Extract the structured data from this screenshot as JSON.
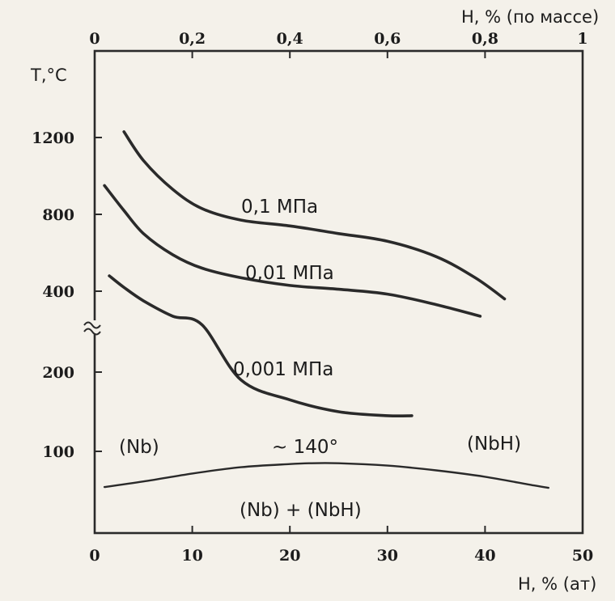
{
  "chart_data": {
    "type": "line",
    "x_top": {
      "label": "H, % (по массе)",
      "ticks": [
        "0",
        "0,2",
        "0,4",
        "0,6",
        "0,8",
        "1"
      ],
      "range": [
        0,
        1
      ]
    },
    "x_bottom": {
      "label": "H, % (ат)",
      "ticks": [
        "0",
        "10",
        "20",
        "30",
        "40",
        "50"
      ],
      "range": [
        0,
        50
      ]
    },
    "y": {
      "label": "T,°C",
      "upper_ticks": [
        "400",
        "800",
        "1200"
      ],
      "lower_ticks": [
        "100",
        "200"
      ],
      "axis_break": true
    },
    "series": [
      {
        "name": "0,1 МПа",
        "x": [
          3,
          5,
          8,
          11,
          15,
          20,
          25,
          30,
          35,
          39,
          42
        ],
        "y": [
          1230,
          1080,
          930,
          830,
          770,
          740,
          700,
          660,
          580,
          470,
          360
        ]
      },
      {
        "name": "0,01 МПа",
        "x": [
          1,
          3,
          5,
          8,
          11,
          15,
          20,
          25,
          30,
          35,
          39.5
        ],
        "y": [
          950,
          820,
          700,
          590,
          520,
          470,
          430,
          410,
          385,
          330,
          270
        ]
      },
      {
        "name": "0,001 МПа",
        "x": [
          1.5,
          3,
          5,
          8,
          11,
          15,
          20,
          25,
          30,
          32.5
        ],
        "y": [
          480,
          420,
          350,
          270,
          225,
          190,
          165,
          150,
          145,
          145
        ]
      }
    ],
    "phase_boundary": {
      "x": [
        1,
        5,
        10,
        15,
        20,
        22,
        25,
        30,
        35,
        40,
        45,
        46.5
      ],
      "y": [
        55,
        62,
        72,
        80,
        84,
        85,
        85,
        82,
        76,
        68,
        57,
        54
      ]
    },
    "annotations": {
      "peak": "~ 140°",
      "left_phase": "(Nb)",
      "right_phase": "(NbH)",
      "two_phase": "(Nb)  + (NbH)"
    }
  }
}
